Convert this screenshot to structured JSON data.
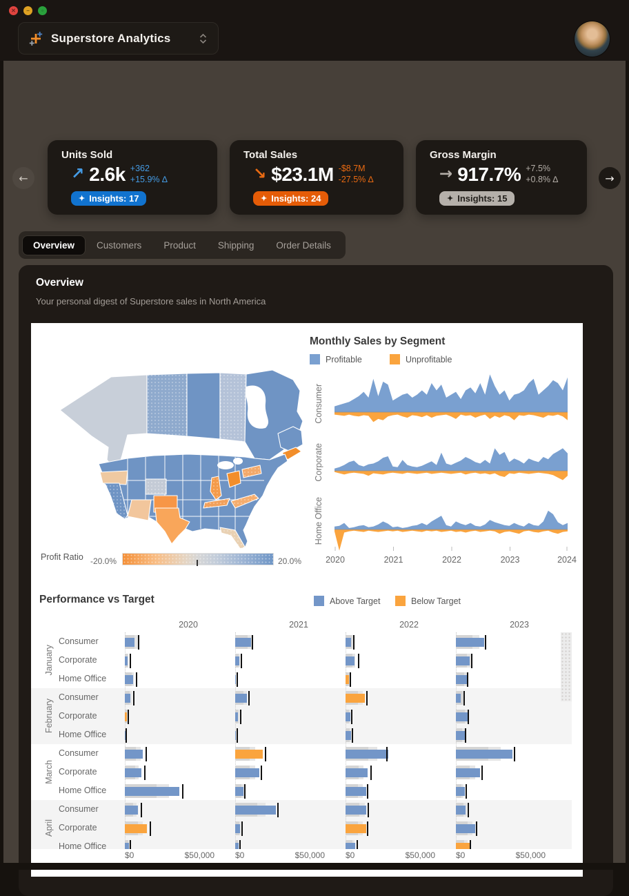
{
  "window": {
    "traffic_lights": [
      "close",
      "minimize",
      "zoom"
    ],
    "app_title": "Superstore Analytics"
  },
  "kpi_cards": [
    {
      "title": "Units Sold",
      "trend": "up",
      "value": "2.6k",
      "delta_abs": "+362",
      "delta_pct": "+15.9% ∆",
      "insights_label": "Insights: 17",
      "accent": "#459be4",
      "badge_bg": "#1173cf",
      "badge_text": "#ffffff"
    },
    {
      "title": "Total Sales",
      "trend": "down",
      "value": "$23.1M",
      "delta_abs": "-$8.7M",
      "delta_pct": "-27.5% ∆",
      "insights_label": "Insights: 24",
      "accent": "#e96a12",
      "badge_bg": "#e55c07",
      "badge_text": "#ffffff"
    },
    {
      "title": "Gross Margin",
      "trend": "flat",
      "value": "917.7%",
      "delta_abs": "+7.5%",
      "delta_pct": "+0.8% ∆",
      "insights_label": "Insights: 15",
      "accent": "#b3ada7",
      "badge_bg": "#b5b0aa",
      "badge_text": "#23201c"
    }
  ],
  "tabs": [
    {
      "label": "Overview",
      "active": true
    },
    {
      "label": "Customers",
      "active": false
    },
    {
      "label": "Product",
      "active": false
    },
    {
      "label": "Shipping",
      "active": false
    },
    {
      "label": "Order Details",
      "active": false
    }
  ],
  "panel": {
    "title": "Overview",
    "subtitle": "Your personal digest of Superstore sales in North America"
  },
  "map": {
    "legend_label": "Profit Ratio",
    "legend_min": "-20.0%",
    "legend_max": "20.0%",
    "color_scale": {
      "negative": "#f49038",
      "neutral": "#d6d6d6",
      "positive": "#6f96c6"
    },
    "regions": [
      {
        "id": "yukon-bc",
        "fill": "#c8cfd9"
      },
      {
        "id": "nwt",
        "fill": "#8faacd"
      },
      {
        "id": "nunavut",
        "fill": "#6f94c4"
      },
      {
        "id": "manitoba",
        "fill": "#b4c2d8"
      },
      {
        "id": "ontario-quebec",
        "fill": "#6f94c4"
      },
      {
        "id": "atlantic",
        "fill": "#6f94c4"
      },
      {
        "id": "nova-scotia",
        "fill": "#f28e2b"
      },
      {
        "id": "us-base",
        "fill": "#6f94c4"
      },
      {
        "id": "oregon",
        "fill": "#efc9a1"
      },
      {
        "id": "california",
        "fill": "#6f94c4"
      },
      {
        "id": "wyoming",
        "fill": "#c4cbd6"
      },
      {
        "id": "colorado",
        "fill": "#f79646"
      },
      {
        "id": "arizona",
        "fill": "#f2c69c"
      },
      {
        "id": "texas",
        "fill": "#f9a65a"
      },
      {
        "id": "illinois",
        "fill": "#f49b4a"
      },
      {
        "id": "ohio",
        "fill": "#f28e2b"
      },
      {
        "id": "pennsylvania",
        "fill": "#f3a96a"
      },
      {
        "id": "tennessee",
        "fill": "#f3a15c"
      },
      {
        "id": "north-carolina",
        "fill": "#f5ad6e"
      },
      {
        "id": "florida",
        "fill": "#e9d1b3"
      }
    ]
  },
  "chart_data": [
    {
      "type": "area",
      "title": "Monthly Sales by Segment",
      "legend": [
        "Profitable",
        "Unprofitable"
      ],
      "colors": {
        "profitable": "#7aa0d0",
        "unprofitable": "#faa43e"
      },
      "x_ticks": [
        "2020",
        "2021",
        "2022",
        "2023",
        "2024"
      ],
      "x_unit": "month (Jan 2020 - Jan 2024)",
      "value_unit": "sales_k_usd",
      "rows": [
        {
          "segment": "Consumer",
          "profitable": [
            8,
            10,
            12,
            14,
            18,
            22,
            28,
            20,
            46,
            22,
            42,
            38,
            16,
            20,
            24,
            26,
            20,
            24,
            30,
            24,
            40,
            30,
            38,
            20,
            24,
            28,
            18,
            30,
            34,
            26,
            40,
            24,
            52,
            36,
            24,
            30,
            16,
            24,
            26,
            30,
            40,
            46,
            24,
            30,
            36,
            44,
            40,
            30,
            48
          ],
          "unprofitable": [
            4,
            5,
            6,
            4,
            6,
            7,
            5,
            6,
            16,
            11,
            13,
            7,
            5,
            4,
            7,
            9,
            5,
            6,
            8,
            5,
            9,
            6,
            5,
            4,
            7,
            11,
            4,
            6,
            5,
            9,
            6,
            4,
            11,
            6,
            9,
            5,
            7,
            13,
            5,
            6,
            4,
            5,
            7,
            9,
            5,
            6,
            4,
            7,
            13
          ]
        },
        {
          "segment": "Corporate",
          "profitable": [
            3,
            5,
            8,
            12,
            14,
            8,
            6,
            9,
            10,
            13,
            18,
            20,
            6,
            5,
            15,
            8,
            6,
            5,
            7,
            10,
            13,
            8,
            25,
            10,
            8,
            11,
            14,
            19,
            16,
            12,
            10,
            15,
            10,
            31,
            22,
            26,
            12,
            17,
            14,
            10,
            17,
            14,
            12,
            19,
            16,
            23,
            27,
            31,
            24
          ],
          "unprofitable": [
            2,
            4,
            6,
            4,
            3,
            4,
            5,
            8,
            4,
            5,
            6,
            4,
            3,
            4,
            5,
            3,
            4,
            5,
            4,
            3,
            5,
            4,
            3,
            4,
            5,
            4,
            3,
            6,
            4,
            3,
            5,
            4,
            6,
            4,
            8,
            10,
            4,
            5,
            3,
            4,
            5,
            4,
            3,
            4,
            5,
            7,
            11,
            15,
            8
          ]
        },
        {
          "segment": "Home Office",
          "profitable": [
            4,
            5,
            9,
            2,
            3,
            5,
            6,
            3,
            4,
            7,
            11,
            8,
            3,
            4,
            2,
            3,
            5,
            6,
            9,
            6,
            11,
            15,
            19,
            6,
            4,
            11,
            8,
            6,
            9,
            5,
            4,
            7,
            13,
            10,
            8,
            6,
            5,
            9,
            6,
            4,
            9,
            6,
            5,
            11,
            26,
            21,
            10,
            6,
            9
          ],
          "unprofitable": [
            3,
            34,
            5,
            3,
            2,
            3,
            4,
            2,
            3,
            4,
            3,
            2,
            3,
            2,
            4,
            3,
            2,
            3,
            4,
            2,
            3,
            2,
            4,
            3,
            2,
            4,
            3,
            5,
            3,
            2,
            4,
            3,
            2,
            3,
            7,
            4,
            3,
            5,
            7,
            3,
            2,
            4,
            5,
            3,
            2,
            5,
            7,
            4,
            3
          ]
        }
      ]
    },
    {
      "type": "bullet",
      "title": "Performance vs Target",
      "legend": [
        "Above Target",
        "Below Target"
      ],
      "colors": {
        "above": "#7396c8",
        "below": "#faa43e",
        "range": "#d4d4d4",
        "target": "#111111"
      },
      "years": [
        "2020",
        "2021",
        "2022",
        "2023"
      ],
      "axis": {
        "min": 0,
        "max": 50000,
        "tick_labels": [
          "$0",
          "$50,000"
        ]
      },
      "months": [
        "January",
        "February",
        "March",
        "April"
      ],
      "segments": [
        "Consumer",
        "Corporate",
        "Home Office"
      ],
      "rows": [
        {
          "month": "January",
          "segment": "Consumer",
          "cells": [
            {
              "year": "2020",
              "value": 6000,
              "target": 8000,
              "range": 8000,
              "status": "above"
            },
            {
              "year": "2021",
              "value": 9500,
              "target": 10000,
              "range": 10500,
              "status": "above"
            },
            {
              "year": "2022",
              "value": 3500,
              "target": 4500,
              "range": 5000,
              "status": "above"
            },
            {
              "year": "2023",
              "value": 17000,
              "target": 17500,
              "range": 14000,
              "status": "above"
            }
          ]
        },
        {
          "month": "January",
          "segment": "Corporate",
          "cells": [
            {
              "year": "2020",
              "value": 1500,
              "target": 3000,
              "range": 2000,
              "status": "above"
            },
            {
              "year": "2021",
              "value": 2500,
              "target": 3200,
              "range": 3000,
              "status": "above"
            },
            {
              "year": "2022",
              "value": 5500,
              "target": 7500,
              "range": 6000,
              "status": "above"
            },
            {
              "year": "2023",
              "value": 8500,
              "target": 9000,
              "range": 9500,
              "status": "above"
            }
          ]
        },
        {
          "month": "January",
          "segment": "Home Office",
          "cells": [
            {
              "year": "2020",
              "value": 5000,
              "target": 6500,
              "range": 5500,
              "status": "above"
            },
            {
              "year": "2021",
              "value": 400,
              "target": 800,
              "range": 600,
              "status": "above"
            },
            {
              "year": "2022",
              "value": 2000,
              "target": 2300,
              "range": 2600,
              "status": "below"
            },
            {
              "year": "2023",
              "value": 6500,
              "target": 6800,
              "range": 7000,
              "status": "above"
            }
          ]
        },
        {
          "month": "February",
          "segment": "Consumer",
          "cells": [
            {
              "year": "2020",
              "value": 3500,
              "target": 4800,
              "range": 4200,
              "status": "above"
            },
            {
              "year": "2021",
              "value": 7000,
              "target": 7800,
              "range": 7200,
              "status": "above"
            },
            {
              "year": "2022",
              "value": 11500,
              "target": 12500,
              "range": 10500,
              "status": "below"
            },
            {
              "year": "2023",
              "value": 3000,
              "target": 4500,
              "range": 5500,
              "status": "above"
            }
          ]
        },
        {
          "month": "February",
          "segment": "Corporate",
          "cells": [
            {
              "year": "2020",
              "value": 1200,
              "target": 1800,
              "range": 1500,
              "status": "below"
            },
            {
              "year": "2021",
              "value": 1800,
              "target": 2800,
              "range": 2400,
              "status": "above"
            },
            {
              "year": "2022",
              "value": 2800,
              "target": 3200,
              "range": 3000,
              "status": "above"
            },
            {
              "year": "2023",
              "value": 7000,
              "target": 7200,
              "range": 7400,
              "status": "above"
            }
          ]
        },
        {
          "month": "February",
          "segment": "Home Office",
          "cells": [
            {
              "year": "2020",
              "value": 200,
              "target": 600,
              "range": 400,
              "status": "above"
            },
            {
              "year": "2021",
              "value": 300,
              "target": 700,
              "range": 500,
              "status": "above"
            },
            {
              "year": "2022",
              "value": 3200,
              "target": 3600,
              "range": 3400,
              "status": "above"
            },
            {
              "year": "2023",
              "value": 5200,
              "target": 5600,
              "range": 5400,
              "status": "above"
            }
          ]
        },
        {
          "month": "March",
          "segment": "Consumer",
          "cells": [
            {
              "year": "2020",
              "value": 11000,
              "target": 12500,
              "range": 9500,
              "status": "above"
            },
            {
              "year": "2021",
              "value": 16500,
              "target": 17800,
              "range": 12000,
              "status": "below"
            },
            {
              "year": "2022",
              "value": 26000,
              "target": 24500,
              "range": 19000,
              "status": "above"
            },
            {
              "year": "2023",
              "value": 34000,
              "target": 35000,
              "range": 27000,
              "status": "above"
            }
          ]
        },
        {
          "month": "March",
          "segment": "Corporate",
          "cells": [
            {
              "year": "2020",
              "value": 10000,
              "target": 11500,
              "range": 8500,
              "status": "above"
            },
            {
              "year": "2021",
              "value": 14500,
              "target": 15500,
              "range": 12000,
              "status": "above"
            },
            {
              "year": "2022",
              "value": 13500,
              "target": 15000,
              "range": 11000,
              "status": "above"
            },
            {
              "year": "2023",
              "value": 14500,
              "target": 15500,
              "range": 11500,
              "status": "above"
            }
          ]
        },
        {
          "month": "March",
          "segment": "Home Office",
          "cells": [
            {
              "year": "2020",
              "value": 33000,
              "target": 34500,
              "range": 26500,
              "status": "above"
            },
            {
              "year": "2021",
              "value": 5000,
              "target": 5200,
              "range": 5400,
              "status": "above"
            },
            {
              "year": "2022",
              "value": 12500,
              "target": 13000,
              "range": 10500,
              "status": "above"
            },
            {
              "year": "2023",
              "value": 5500,
              "target": 6000,
              "range": 4500,
              "status": "above"
            }
          ]
        },
        {
          "month": "April",
          "segment": "Consumer",
          "cells": [
            {
              "year": "2020",
              "value": 8000,
              "target": 9500,
              "range": 7000,
              "status": "above"
            },
            {
              "year": "2021",
              "value": 24500,
              "target": 25500,
              "range": 18500,
              "status": "above"
            },
            {
              "year": "2022",
              "value": 12500,
              "target": 13500,
              "range": 11500,
              "status": "above"
            },
            {
              "year": "2023",
              "value": 6000,
              "target": 7000,
              "range": 6500,
              "status": "above"
            }
          ]
        },
        {
          "month": "April",
          "segment": "Corporate",
          "cells": [
            {
              "year": "2020",
              "value": 13500,
              "target": 14800,
              "range": 11000,
              "status": "below"
            },
            {
              "year": "2021",
              "value": 3000,
              "target": 3600,
              "range": 3400,
              "status": "above"
            },
            {
              "year": "2022",
              "value": 12500,
              "target": 13000,
              "range": 10500,
              "status": "below"
            },
            {
              "year": "2023",
              "value": 11500,
              "target": 12000,
              "range": 10000,
              "status": "above"
            }
          ]
        },
        {
          "month": "April",
          "segment": "Home Office",
          "cells": [
            {
              "year": "2020",
              "value": 2500,
              "target": 3000,
              "range": 2800,
              "status": "above"
            },
            {
              "year": "2021",
              "value": 2000,
              "target": 2400,
              "range": 2200,
              "status": "above"
            },
            {
              "year": "2022",
              "value": 6000,
              "target": 6500,
              "range": 5500,
              "status": "above"
            },
            {
              "year": "2023",
              "value": 8500,
              "target": 8500,
              "range": 7000,
              "status": "below"
            }
          ]
        }
      ]
    }
  ]
}
